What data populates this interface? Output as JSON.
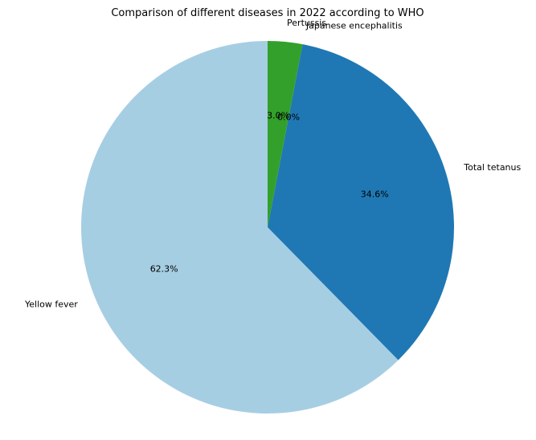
{
  "chart_data": {
    "type": "pie",
    "title": "Comparison of different diseases in 2022 according to WHO",
    "categories": [
      "Yellow fever",
      "Total tetanus",
      "Japanese encephalitis",
      "Pertussis"
    ],
    "values": [
      62.3,
      34.6,
      0.0,
      3.0
    ],
    "percent_labels": [
      "62.3%",
      "34.6%",
      "0.0%",
      "3.0%"
    ],
    "colors": [
      "#a6cee3",
      "#1f78b4",
      "#b2df8a",
      "#33a02c"
    ],
    "start_angle_deg": 90,
    "direction": "counterclockwise",
    "legend": "none"
  }
}
